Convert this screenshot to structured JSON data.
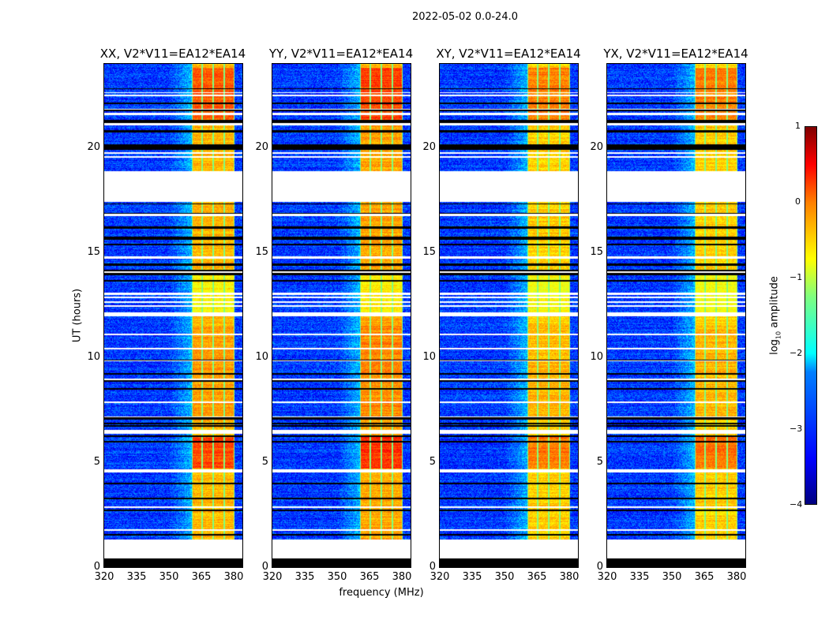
{
  "chart_data": {
    "type": "heatmap",
    "title": "2022-05-02 0.0-24.0",
    "xlabel": "frequency (MHz)",
    "ylabel": "UT (hours)",
    "xlim": [
      320,
      384
    ],
    "ylim": [
      0,
      24
    ],
    "xticks": [
      "320",
      "335",
      "350",
      "365",
      "380"
    ],
    "xtick_values": [
      320,
      335,
      350,
      365,
      380
    ],
    "yticks": [
      "0",
      "5",
      "10",
      "15",
      "20"
    ],
    "ytick_values": [
      0,
      5,
      10,
      15,
      20
    ],
    "panels": [
      {
        "title": "XX, V2*V11=EA12*EA14",
        "gain": 1.0
      },
      {
        "title": "YY, V2*V11=EA12*EA14",
        "gain": 1.1
      },
      {
        "title": "XY, V2*V11=EA12*EA14",
        "gain": 0.85
      },
      {
        "title": "YX, V2*V11=EA12*EA14",
        "gain": 0.85
      }
    ],
    "colorbar": {
      "label_prefix": "log",
      "label_sub": "10",
      "label_suffix": " amplitude",
      "range": [
        -4,
        1
      ],
      "ticks": [
        "1",
        "0",
        "−1",
        "−2",
        "−3",
        "−4"
      ],
      "tick_values": [
        1,
        0,
        -1,
        -2,
        -3,
        -4
      ],
      "colormap": "jet"
    },
    "signal_band_mhz": [
      360.5,
      380.5
    ],
    "flagged_hours": [
      [
        0.4,
        1.3
      ],
      [
        4.5,
        4.65
      ],
      [
        6.35,
        6.5
      ],
      [
        11.95,
        12.15
      ],
      [
        14.0,
        14.2
      ],
      [
        17.5,
        18.9
      ]
    ],
    "no_data_hours": [
      [
        0,
        0.4
      ],
      [
        16.15,
        16.25
      ],
      [
        19.9,
        20.15
      ]
    ]
  }
}
